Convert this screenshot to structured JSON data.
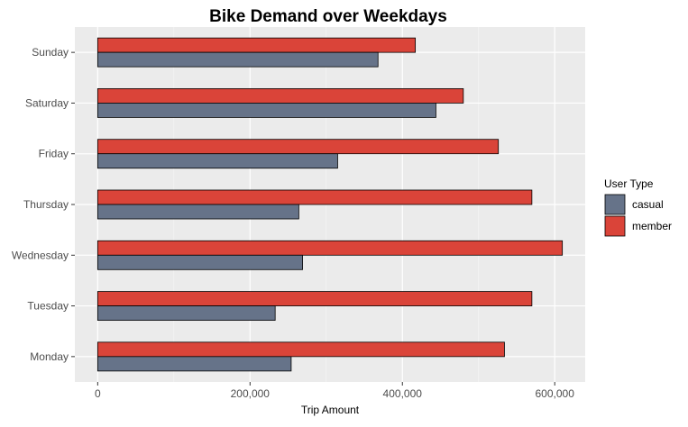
{
  "chart_data": {
    "type": "bar",
    "orientation": "horizontal",
    "title": "Bike Demand over Weekdays",
    "xlabel": "Trip Amount",
    "ylabel": "",
    "xlim": [
      -30000,
      640000
    ],
    "x_ticks": [
      0,
      200000,
      400000,
      600000
    ],
    "x_tick_labels": [
      "0",
      "200,000",
      "400,000",
      "600,000"
    ],
    "categories": [
      "Monday",
      "Tuesday",
      "Wednesday",
      "Thursday",
      "Friday",
      "Saturday",
      "Sunday"
    ],
    "series": [
      {
        "name": "casual",
        "color": "#667389",
        "values": [
          254000,
          233000,
          269000,
          264000,
          315000,
          444000,
          368000
        ]
      },
      {
        "name": "member",
        "color": "#da4439",
        "values": [
          534000,
          570000,
          610000,
          570000,
          526000,
          480000,
          417000
        ]
      }
    ],
    "legend": {
      "title": "User Type",
      "position": "right"
    },
    "grid": true,
    "background_color": "#ebebeb"
  }
}
